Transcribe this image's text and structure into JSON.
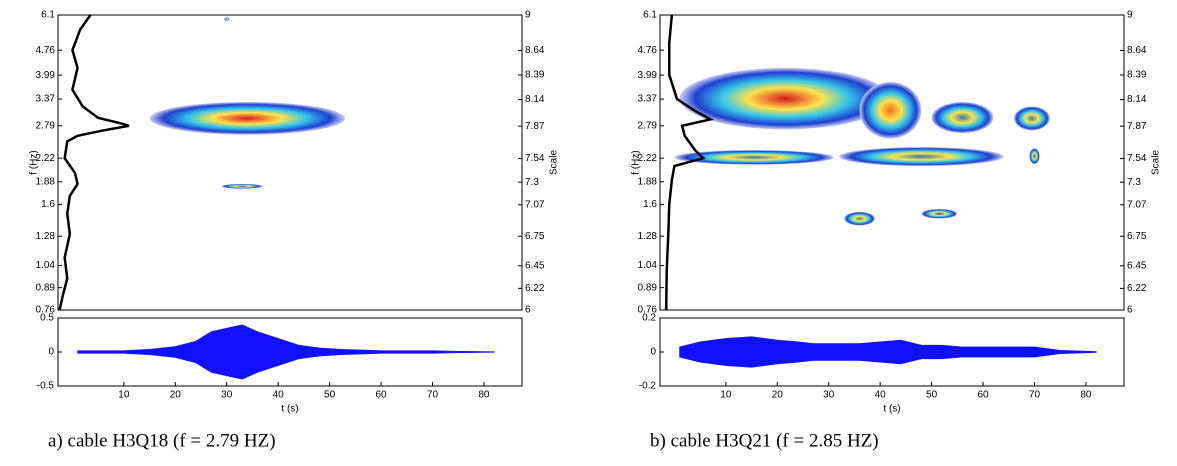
{
  "chart_data": [
    {
      "type": "wavelet",
      "caption": "a) cable H3Q18 (f = 2.79 HZ)",
      "y_label": "f (Hz)",
      "y2_label": "Scale",
      "x_label": "t (s)",
      "xlim": [
        -2.8,
        87.4
      ],
      "log_y": true,
      "ylim": [
        0.76,
        6.1
      ],
      "yticks": [
        0.76,
        0.89,
        1.04,
        1.28,
        1.6,
        1.88,
        2.22,
        2.79,
        3.37,
        3.99,
        4.76,
        6.1
      ],
      "y2lim": [
        6,
        9
      ],
      "y2ticks": [
        6,
        6.22,
        6.45,
        6.75,
        7.07,
        7.3,
        7.54,
        7.87,
        8.14,
        8.39,
        8.64,
        9
      ],
      "spectrum": {
        "color": "#000000",
        "f": [
          6.1,
          5.5,
          4.76,
          4.2,
          3.6,
          3.2,
          2.95,
          2.85,
          2.79,
          2.7,
          2.6,
          2.5,
          2.22,
          2.0,
          1.85,
          1.7,
          1.5,
          1.3,
          1.1,
          0.95,
          0.85,
          0.76
        ],
        "t": [
          3.5,
          1.5,
          0,
          1,
          0,
          2,
          5,
          9,
          11,
          6,
          1,
          -1,
          -1.5,
          0.5,
          1,
          -0.5,
          -1,
          -0.5,
          -1.5,
          -1,
          -1.8,
          -2.5
        ]
      },
      "blobs": [
        {
          "t": [
            15,
            53
          ],
          "f": [
            2.62,
            3.3
          ],
          "color": "#d7191c"
        },
        {
          "t": [
            29,
            37
          ],
          "f": [
            1.79,
            1.85
          ],
          "color": "#1f3fd0"
        },
        {
          "t": [
            29.5,
            30.5
          ],
          "f": [
            5.85,
            6.0
          ],
          "color": "#1f3fd0"
        }
      ],
      "signal": {
        "type": "area",
        "color": "#1010ff",
        "ylim": [
          -0.5,
          0.5
        ],
        "yticks": [
          -0.5,
          0,
          0.5
        ],
        "xticks": [
          10,
          20,
          30,
          40,
          50,
          60,
          70,
          80
        ],
        "x": [
          1,
          5,
          10,
          15,
          20,
          24,
          27,
          30,
          33,
          36,
          40,
          44,
          48,
          52,
          56,
          60,
          65,
          70,
          75,
          82
        ],
        "values": [
          0.02,
          0.02,
          0.02,
          0.04,
          0.08,
          0.16,
          0.3,
          0.35,
          0.4,
          0.3,
          0.2,
          0.1,
          0.06,
          0.04,
          0.03,
          0.02,
          0.02,
          0.02,
          0.01,
          0.005
        ]
      }
    },
    {
      "type": "wavelet",
      "caption": "b) cable H3Q21 (f = 2.85 HZ)",
      "y_label": "f (Hz)",
      "y2_label": "Scale",
      "x_label": "t (s)",
      "xlim": [
        -2.8,
        87.4
      ],
      "log_y": true,
      "ylim": [
        0.76,
        6.1
      ],
      "yticks": [
        0.76,
        0.89,
        1.04,
        1.28,
        1.6,
        1.88,
        2.22,
        2.79,
        3.37,
        3.99,
        4.76,
        6.1
      ],
      "y2lim": [
        6,
        9
      ],
      "y2ticks": [
        6,
        6.22,
        6.45,
        6.75,
        7.07,
        7.3,
        7.54,
        7.87,
        8.14,
        8.39,
        8.64,
        9
      ],
      "spectrum": {
        "color": "#000000",
        "f": [
          6.1,
          5,
          4,
          3.37,
          3.1,
          2.92,
          2.79,
          2.6,
          2.35,
          2.22,
          2.1,
          1.9,
          1.6,
          1.28,
          1.0,
          0.76
        ],
        "t": [
          -0.5,
          -1,
          -1,
          0.5,
          4,
          7,
          1.5,
          2,
          4,
          5.6,
          0,
          -0.5,
          -1,
          -1.2,
          -1.5,
          -1.6
        ]
      },
      "blobs": [
        {
          "t": [
            1,
            42
          ],
          "f": [
            2.72,
            4.2
          ],
          "color": "#d7191c"
        },
        {
          "t": [
            0,
            31
          ],
          "f": [
            2.12,
            2.35
          ],
          "color": "#2c7bb6"
        },
        {
          "t": [
            32,
            64
          ],
          "f": [
            2.1,
            2.4
          ],
          "color": "#2c7bb6"
        },
        {
          "t": [
            36,
            48
          ],
          "f": [
            2.55,
            3.8
          ],
          "color": "#f07020"
        },
        {
          "t": [
            50,
            62
          ],
          "f": [
            2.65,
            3.3
          ],
          "color": "#2c7bb6"
        },
        {
          "t": [
            66,
            73
          ],
          "f": [
            2.7,
            3.2
          ],
          "color": "#2c7bb6"
        },
        {
          "t": [
            69,
            71
          ],
          "f": [
            2.13,
            2.38
          ],
          "color": "#1f3fd0"
        },
        {
          "t": [
            33,
            39
          ],
          "f": [
            1.38,
            1.52
          ],
          "color": "#2c7bb6"
        },
        {
          "t": [
            48,
            55
          ],
          "f": [
            1.45,
            1.55
          ],
          "color": "#1f3fd0"
        }
      ],
      "signal": {
        "type": "area",
        "color": "#1010ff",
        "ylim": [
          -0.2,
          0.2
        ],
        "yticks": [
          -0.2,
          0,
          0.2
        ],
        "xticks": [
          10,
          20,
          30,
          40,
          50,
          60,
          70,
          80
        ],
        "x": [
          1,
          5,
          10,
          15,
          20,
          24,
          27,
          30,
          33,
          36,
          40,
          44,
          48,
          52,
          56,
          60,
          65,
          70,
          75,
          82
        ],
        "values": [
          0.03,
          0.06,
          0.08,
          0.09,
          0.07,
          0.06,
          0.05,
          0.05,
          0.05,
          0.05,
          0.06,
          0.07,
          0.04,
          0.04,
          0.03,
          0.03,
          0.03,
          0.03,
          0.01,
          0.003
        ]
      }
    }
  ]
}
